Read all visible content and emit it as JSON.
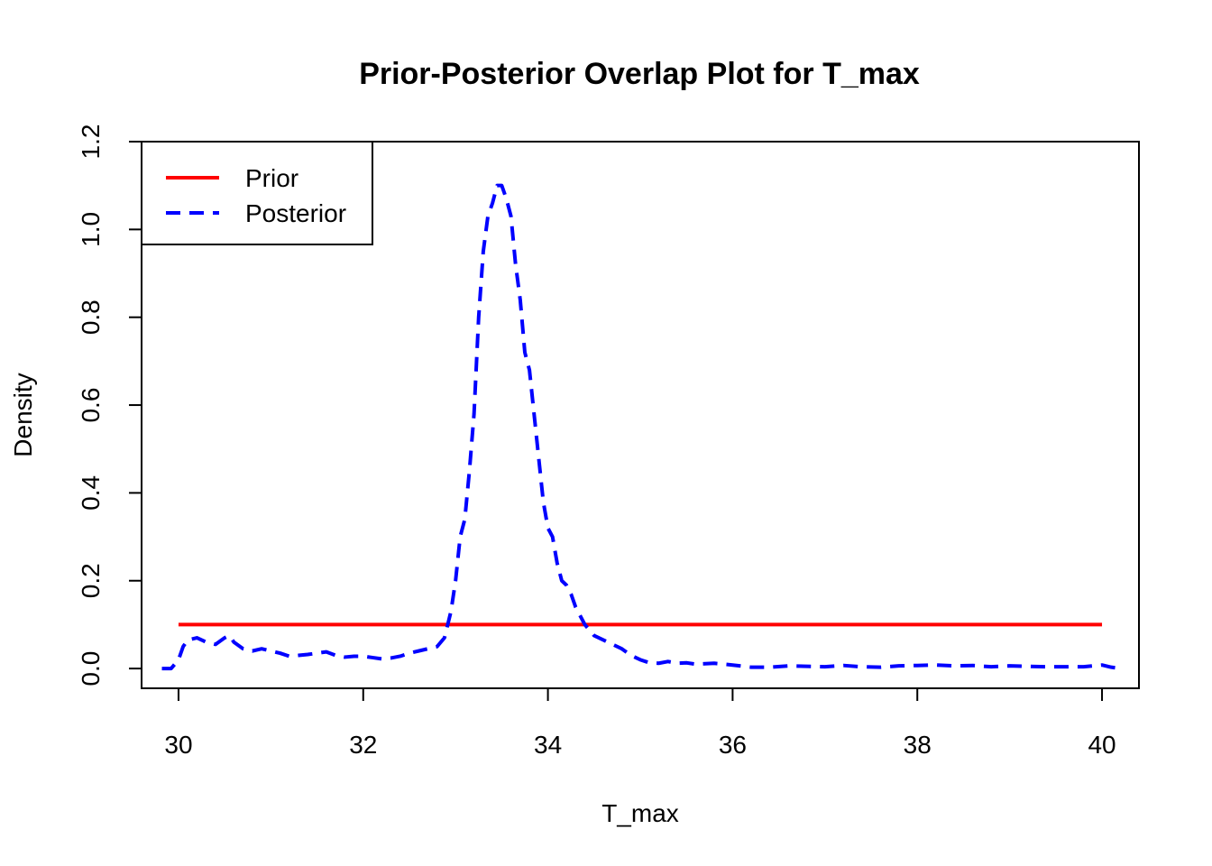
{
  "chart_data": {
    "type": "line",
    "title": "Prior-Posterior Overlap Plot for T_max",
    "xlabel": "T_max",
    "ylabel": "Density",
    "xlim": [
      29.6,
      40.4
    ],
    "ylim": [
      -0.045,
      1.2
    ],
    "xticks": [
      "30",
      "32",
      "34",
      "36",
      "38",
      "40"
    ],
    "yticks": [
      "0.0",
      "0.2",
      "0.4",
      "0.6",
      "0.8",
      "1.0",
      "1.2"
    ],
    "legend": {
      "position": "top-left",
      "entries": [
        "Prior",
        "Posterior"
      ]
    },
    "colors": {
      "prior": "#ff0000",
      "posterior": "#0000ff"
    },
    "series": [
      {
        "name": "Prior",
        "style": "solid",
        "x": [
          30,
          40
        ],
        "y": [
          0.1,
          0.1
        ]
      },
      {
        "name": "Posterior",
        "style": "dashed",
        "x": [
          29.82,
          29.92,
          30.0,
          30.05,
          30.1,
          30.2,
          30.3,
          30.4,
          30.5,
          30.55,
          30.6,
          30.7,
          30.8,
          30.9,
          31.0,
          31.1,
          31.2,
          31.3,
          31.4,
          31.5,
          31.6,
          31.7,
          31.8,
          31.9,
          32.0,
          32.1,
          32.2,
          32.3,
          32.4,
          32.5,
          32.6,
          32.7,
          32.8,
          32.88,
          32.95,
          33.0,
          33.05,
          33.1,
          33.15,
          33.2,
          33.25,
          33.3,
          33.35,
          33.4,
          33.45,
          33.5,
          33.55,
          33.6,
          33.65,
          33.7,
          33.75,
          33.8,
          33.85,
          33.9,
          33.95,
          34.0,
          34.05,
          34.1,
          34.15,
          34.2,
          34.25,
          34.3,
          34.35,
          34.4,
          34.5,
          34.6,
          34.7,
          34.8,
          34.9,
          35.0,
          35.1,
          35.2,
          35.3,
          35.4,
          35.5,
          35.6,
          35.8,
          36.0,
          36.2,
          36.4,
          36.6,
          36.8,
          37.0,
          37.2,
          37.4,
          37.6,
          37.8,
          38.0,
          38.2,
          38.4,
          38.6,
          38.8,
          39.0,
          39.2,
          39.4,
          39.6,
          39.8,
          40.0,
          40.1,
          40.2
        ],
        "y": [
          0.0,
          0.0,
          0.02,
          0.05,
          0.065,
          0.07,
          0.06,
          0.055,
          0.07,
          0.075,
          0.06,
          0.045,
          0.04,
          0.045,
          0.04,
          0.035,
          0.028,
          0.03,
          0.032,
          0.035,
          0.038,
          0.03,
          0.026,
          0.028,
          0.028,
          0.025,
          0.022,
          0.024,
          0.028,
          0.035,
          0.04,
          0.045,
          0.05,
          0.07,
          0.13,
          0.2,
          0.3,
          0.34,
          0.45,
          0.58,
          0.8,
          0.95,
          1.03,
          1.06,
          1.1,
          1.1,
          1.07,
          1.03,
          0.92,
          0.84,
          0.72,
          0.68,
          0.58,
          0.48,
          0.38,
          0.32,
          0.3,
          0.24,
          0.2,
          0.19,
          0.17,
          0.14,
          0.12,
          0.1,
          0.075,
          0.065,
          0.055,
          0.045,
          0.03,
          0.02,
          0.013,
          0.012,
          0.016,
          0.012,
          0.013,
          0.01,
          0.012,
          0.008,
          0.003,
          0.003,
          0.006,
          0.005,
          0.004,
          0.007,
          0.004,
          0.003,
          0.006,
          0.007,
          0.008,
          0.006,
          0.007,
          0.004,
          0.006,
          0.005,
          0.004,
          0.004,
          0.004,
          0.008,
          0.003,
          0.0
        ]
      }
    ]
  }
}
